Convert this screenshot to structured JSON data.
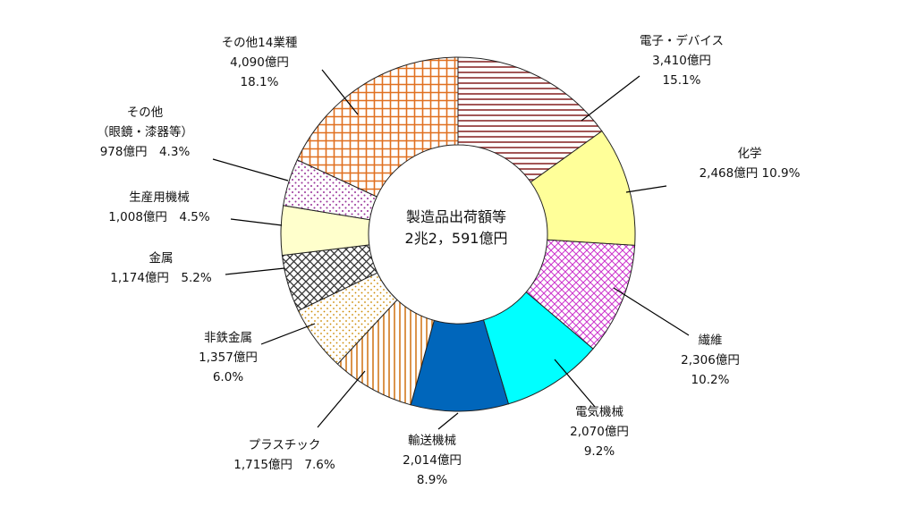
{
  "chart_data": {
    "type": "pie",
    "style": "donut",
    "center_label": [
      "製造品出荷額等",
      "2兆2，591億円"
    ],
    "slices": [
      {
        "name": "電子・デバイス",
        "amount": "3,410億円",
        "percent_label": "15.1%",
        "value": 15.1,
        "color": "#8b2c2c",
        "pattern": "horizontal-lines",
        "label_lines": [
          "電子・デバイス",
          "3,410億円",
          "15.1%"
        ]
      },
      {
        "name": "化学",
        "amount": "2,468億円",
        "percent_label": "10.9%",
        "value": 10.9,
        "color": "#ffff99",
        "pattern": "solid",
        "label_lines": [
          "化学",
          "2,468億円 10.9%"
        ]
      },
      {
        "name": "繊維",
        "amount": "2,306億円",
        "percent_label": "10.2%",
        "value": 10.2,
        "color": "#cc33cc",
        "pattern": "diagonal-crosshatch",
        "label_lines": [
          "繊維",
          "2,306億円",
          "10.2%"
        ]
      },
      {
        "name": "電気機械",
        "amount": "2,070億円",
        "percent_label": "9.2%",
        "value": 9.2,
        "color": "#00ffff",
        "pattern": "solid",
        "label_lines": [
          "電気機械",
          "2,070億円",
          "9.2%"
        ]
      },
      {
        "name": "輸送機械",
        "amount": "2,014億円",
        "percent_label": "8.9%",
        "value": 8.9,
        "color": "#0066bb",
        "pattern": "solid",
        "label_lines": [
          "輸送機械",
          "2,014億円",
          "8.9%"
        ]
      },
      {
        "name": "プラスチック",
        "amount": "1,715億円",
        "percent_label": "7.6%",
        "value": 7.6,
        "color": "#cc6600",
        "pattern": "vertical-lines",
        "label_lines": [
          "プラスチック",
          "1,715億円　7.6%"
        ]
      },
      {
        "name": "非鉄金属",
        "amount": "1,357億円",
        "percent_label": "6.0%",
        "value": 6.0,
        "color": "#cc8800",
        "pattern": "dots",
        "label_lines": [
          "非鉄金属",
          "1,357億円",
          "6.0%"
        ]
      },
      {
        "name": "金属",
        "amount": "1,174億円",
        "percent_label": "5.2%",
        "value": 5.2,
        "color": "#444444",
        "pattern": "diamond-lattice",
        "label_lines": [
          "金属",
          "1,174億円　5.2%"
        ]
      },
      {
        "name": "生産用機械",
        "amount": "1,008億円",
        "percent_label": "4.5%",
        "value": 4.5,
        "color": "#ffffcc",
        "pattern": "solid",
        "label_lines": [
          "生産用機械",
          "1,008億円　4.5%"
        ]
      },
      {
        "name": "その他（眼鏡・漆器等）",
        "amount": "978億円",
        "percent_label": "4.3%",
        "value": 4.3,
        "color": "#993399",
        "pattern": "sparse-dots",
        "label_lines": [
          "その他",
          "（眼鏡・漆器等）",
          "978億円　4.3%"
        ]
      },
      {
        "name": "その他14業種",
        "amount": "4,090億円",
        "percent_label": "18.1%",
        "value": 18.1,
        "color": "#e07020",
        "pattern": "grid",
        "label_lines": [
          "その他14業種",
          "4,090億円",
          "18.1%"
        ]
      }
    ]
  }
}
